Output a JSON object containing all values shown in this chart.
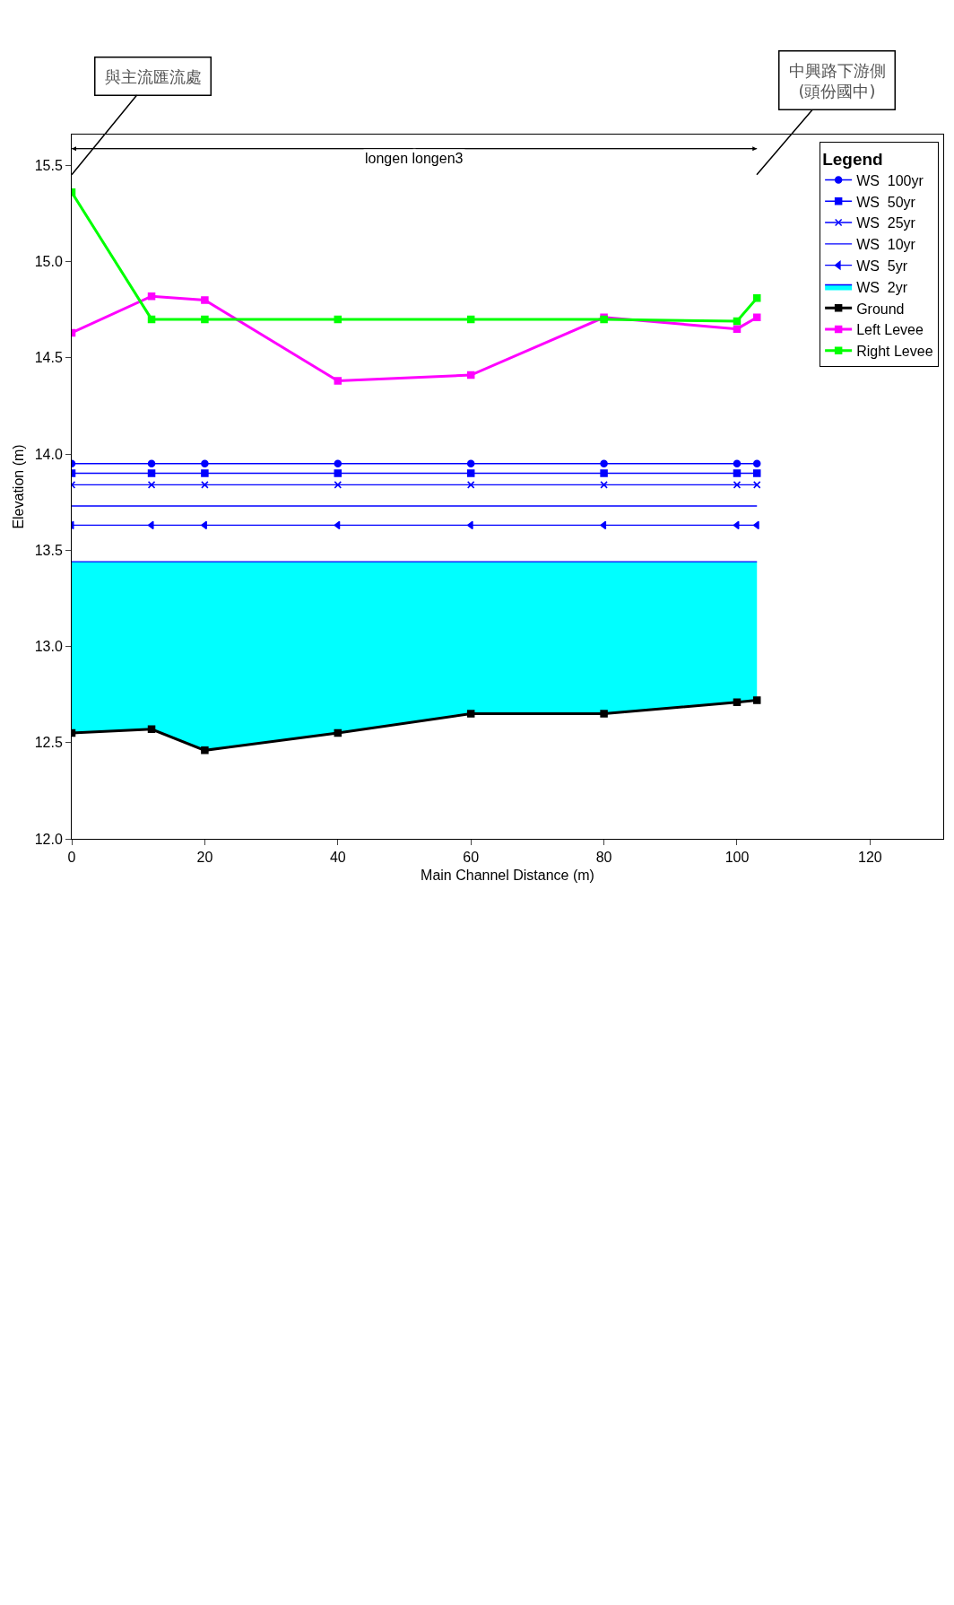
{
  "chart_data": {
    "type": "line",
    "xlabel": "Main Channel Distance (m)",
    "ylabel": "Elevation (m)",
    "legend_title": "Legend",
    "x": [
      0,
      12,
      20,
      40,
      60,
      80,
      100,
      103
    ],
    "xlim": [
      0,
      131
    ],
    "xticks": [
      0,
      20,
      40,
      60,
      80,
      100,
      120
    ],
    "ylim": [
      12.0,
      15.66
    ],
    "yticks": [
      {
        "value": 12,
        "label": "12.0"
      },
      12.5,
      {
        "value": 13,
        "label": "13.0"
      },
      13.5,
      {
        "value": 14,
        "label": "14.0"
      },
      14.5,
      {
        "value": 15,
        "label": "15.0"
      },
      15.5
    ],
    "grid": false,
    "legend": "top right",
    "series": [
      {
        "name": "WS  100yr",
        "color": "#0000ff",
        "marker": "circle",
        "values": [
          13.95,
          13.95,
          13.95,
          13.95,
          13.95,
          13.95,
          13.95,
          13.95
        ]
      },
      {
        "name": "WS  50yr",
        "color": "#0000ff",
        "marker": "square",
        "values": [
          13.9,
          13.9,
          13.9,
          13.9,
          13.9,
          13.9,
          13.9,
          13.9
        ]
      },
      {
        "name": "WS  25yr",
        "color": "#0000ff",
        "marker": "cross",
        "values": [
          13.84,
          13.84,
          13.84,
          13.84,
          13.84,
          13.84,
          13.84,
          13.84
        ]
      },
      {
        "name": "WS  10yr",
        "color": "#0000ff",
        "marker": "none",
        "values": [
          13.73,
          13.73,
          13.73,
          13.73,
          13.73,
          13.73,
          13.73,
          13.73
        ]
      },
      {
        "name": "WS  5yr",
        "color": "#0000ff",
        "marker": "triangle",
        "values": [
          13.63,
          13.63,
          13.63,
          13.63,
          13.63,
          13.63,
          13.63,
          13.63
        ]
      },
      {
        "name": "WS  2yr",
        "type": "area",
        "color": "#0000ff",
        "values": [
          13.44,
          13.44,
          13.44,
          13.44,
          13.44,
          13.44,
          13.44,
          13.44
        ]
      },
      {
        "name": "Ground",
        "color": "#000000",
        "marker": "square",
        "values": [
          12.55,
          12.57,
          12.46,
          12.55,
          12.65,
          12.65,
          12.71,
          12.72
        ]
      },
      {
        "name": "Left Levee",
        "color": "#ff00ff",
        "marker": "square",
        "values": [
          14.63,
          14.82,
          14.8,
          14.38,
          14.41,
          14.71,
          14.65,
          14.71
        ]
      },
      {
        "name": "Right Levee",
        "color": "#00ff00",
        "marker": "square",
        "values": [
          15.36,
          14.7,
          14.7,
          14.7,
          14.7,
          14.7,
          14.69,
          14.81
        ]
      }
    ],
    "annotations": [
      "與主流匯流處",
      "中興路下游側\n(頭份國中)",
      "longen longen3"
    ]
  }
}
